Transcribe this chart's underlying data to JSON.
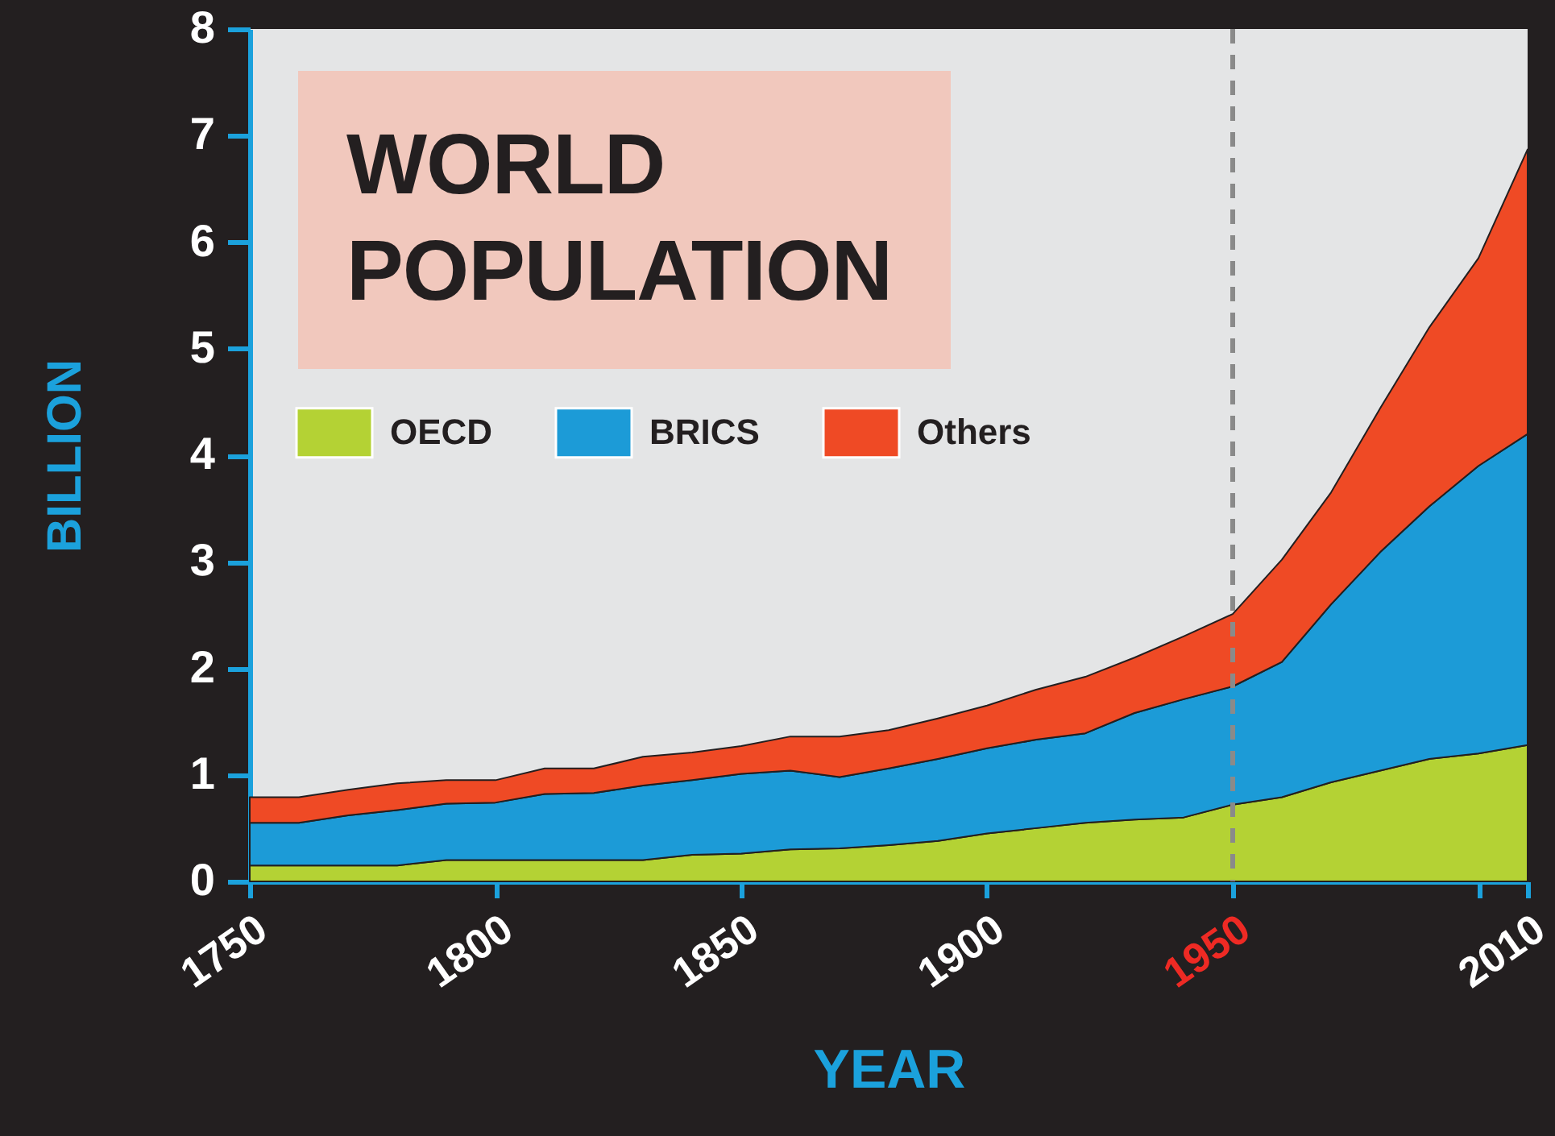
{
  "chart_data": {
    "type": "area",
    "title": "WORLD POPULATION",
    "xlabel": "YEAR",
    "ylabel": "BILLION",
    "x": [
      1750,
      1760,
      1770,
      1780,
      1790,
      1800,
      1810,
      1820,
      1830,
      1840,
      1850,
      1860,
      1870,
      1880,
      1890,
      1900,
      1910,
      1920,
      1930,
      1940,
      1950,
      1960,
      1970,
      1980,
      1990,
      2000,
      2010
    ],
    "series": [
      {
        "name": "OECD",
        "color": "#b4d234",
        "values": [
          0.15,
          0.15,
          0.15,
          0.15,
          0.2,
          0.2,
          0.2,
          0.2,
          0.2,
          0.25,
          0.26,
          0.3,
          0.31,
          0.34,
          0.38,
          0.45,
          0.5,
          0.55,
          0.58,
          0.6,
          0.72,
          0.79,
          0.93,
          1.04,
          1.15,
          1.2,
          1.28
        ]
      },
      {
        "name": "BRICS",
        "color": "#1c9bd7",
        "values": [
          0.4,
          0.4,
          0.47,
          0.52,
          0.53,
          0.54,
          0.62,
          0.63,
          0.7,
          0.7,
          0.75,
          0.74,
          0.67,
          0.72,
          0.77,
          0.8,
          0.83,
          0.84,
          1.0,
          1.11,
          1.11,
          1.27,
          1.67,
          2.05,
          2.37,
          2.7,
          2.92
        ]
      },
      {
        "name": "Others",
        "color": "#ef4a25",
        "values": [
          0.24,
          0.24,
          0.24,
          0.25,
          0.22,
          0.21,
          0.24,
          0.23,
          0.27,
          0.26,
          0.26,
          0.32,
          0.38,
          0.36,
          0.38,
          0.4,
          0.47,
          0.53,
          0.52,
          0.59,
          0.68,
          0.96,
          1.05,
          1.35,
          1.68,
          1.95,
          2.67
        ]
      }
    ],
    "stacked": true,
    "xlim": [
      1750,
      2010
    ],
    "xticks": [
      1750,
      1800,
      1850,
      1900,
      1950,
      {
        "value": 2000,
        "label": null
      },
      2010
    ],
    "ylim": [
      0,
      8
    ],
    "yticks": [
      0,
      1,
      2,
      3,
      4,
      5,
      6,
      7,
      8
    ],
    "legend": "top left",
    "ref_lines": [
      {
        "axis": "x",
        "value": 1950,
        "color": "#8a8a8a",
        "line_style": "dashed"
      }
    ]
  }
}
